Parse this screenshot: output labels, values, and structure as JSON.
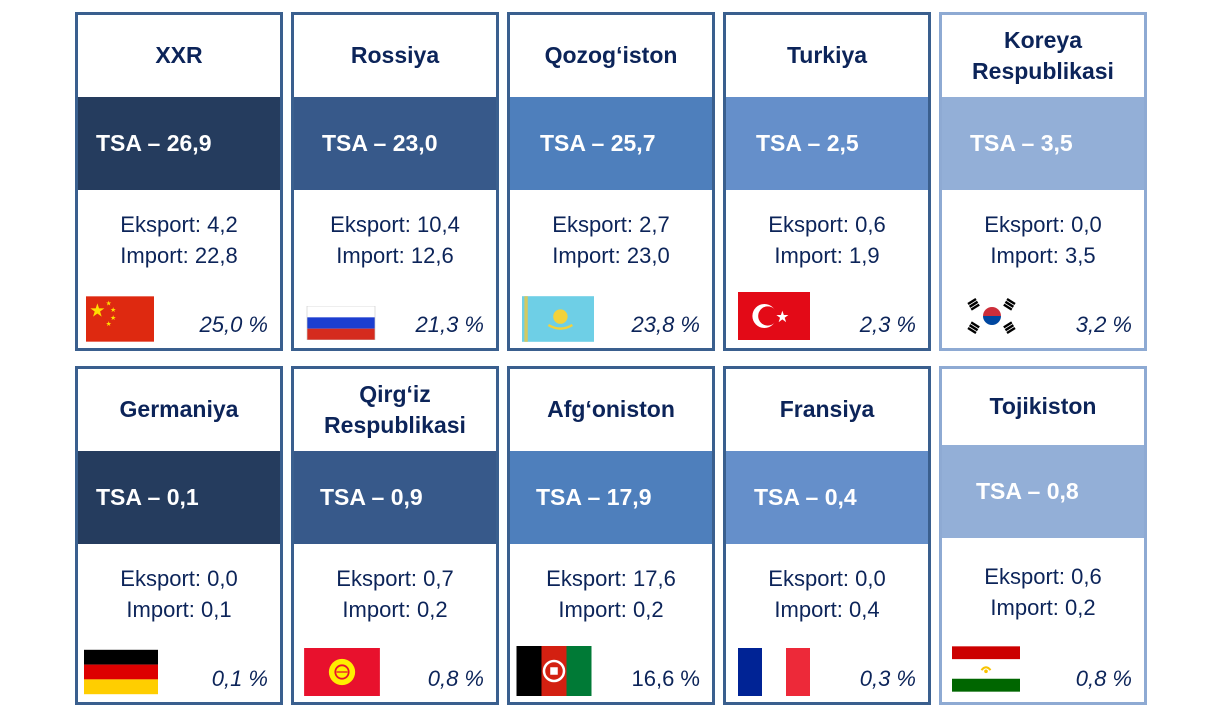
{
  "countries": [
    {
      "name": "XXR",
      "tsa": "TSA – 26,9",
      "eksport": "Eksport: 4,2",
      "import": "Import: 22,8",
      "share": "25,0 %",
      "flag": "china-flag-icon",
      "band_color": "#253c5e"
    },
    {
      "name": "Rossiya",
      "tsa": "TSA – 23,0",
      "eksport": "Eksport: 10,4",
      "import": "Import: 12,6",
      "share": "21,3 %",
      "flag": "russia-flag-icon",
      "band_color": "#37598a"
    },
    {
      "name": "Qozog‘iston",
      "tsa": "TSA – 25,7",
      "eksport": "Eksport: 2,7",
      "import": "Import: 23,0",
      "share": "23,8 %",
      "flag": "kazakhstan-flag-icon",
      "band_color": "#4e7fbc"
    },
    {
      "name": "Turkiya",
      "tsa": "TSA – 2,5",
      "eksport": "Eksport: 0,6",
      "import": "Import: 1,9",
      "share": "2,3 %",
      "flag": "turkey-flag-icon",
      "band_color": "#658fca"
    },
    {
      "name": "Koreya Respublikasi",
      "tsa": "TSA – 3,5",
      "eksport": "Eksport: 0,0",
      "import": "Import: 3,5",
      "share": "3,2 %",
      "flag": "south-korea-flag-icon",
      "band_color": "#93afd7"
    },
    {
      "name": "Germaniya",
      "tsa": "TSA – 0,1",
      "eksport": "Eksport: 0,0",
      "import": "Import: 0,1",
      "share": "0,1 %",
      "flag": "germany-flag-icon",
      "band_color": "#253c5e"
    },
    {
      "name": "Qirg‘iz Respublikasi",
      "tsa": "TSA – 0,9",
      "eksport": "Eksport: 0,7",
      "import": "Import: 0,2",
      "share": "0,8 %",
      "flag": "kyrgyzstan-flag-icon",
      "band_color": "#37598a"
    },
    {
      "name": "Afg‘oniston",
      "tsa": "TSA –  17,9",
      "eksport": "Eksport:  17,6",
      "import": "Import: 0,2",
      "share": "16,6 %",
      "flag": "afghanistan-flag-icon",
      "band_color": "#4e7fbc"
    },
    {
      "name": "Fransiya",
      "tsa": "TSA – 0,4",
      "eksport": "Eksport: 0,0",
      "import": "Import: 0,4",
      "share": "0,3 %",
      "flag": "france-flag-icon",
      "band_color": "#658fca"
    },
    {
      "name": "Tojikiston",
      "tsa": "TSA – 0,8",
      "eksport": "Eksport: 0,6",
      "import": "Import: 0,2",
      "share": "0,8 %",
      "flag": "tajikistan-flag-icon",
      "band_color": "#93afd7"
    }
  ]
}
